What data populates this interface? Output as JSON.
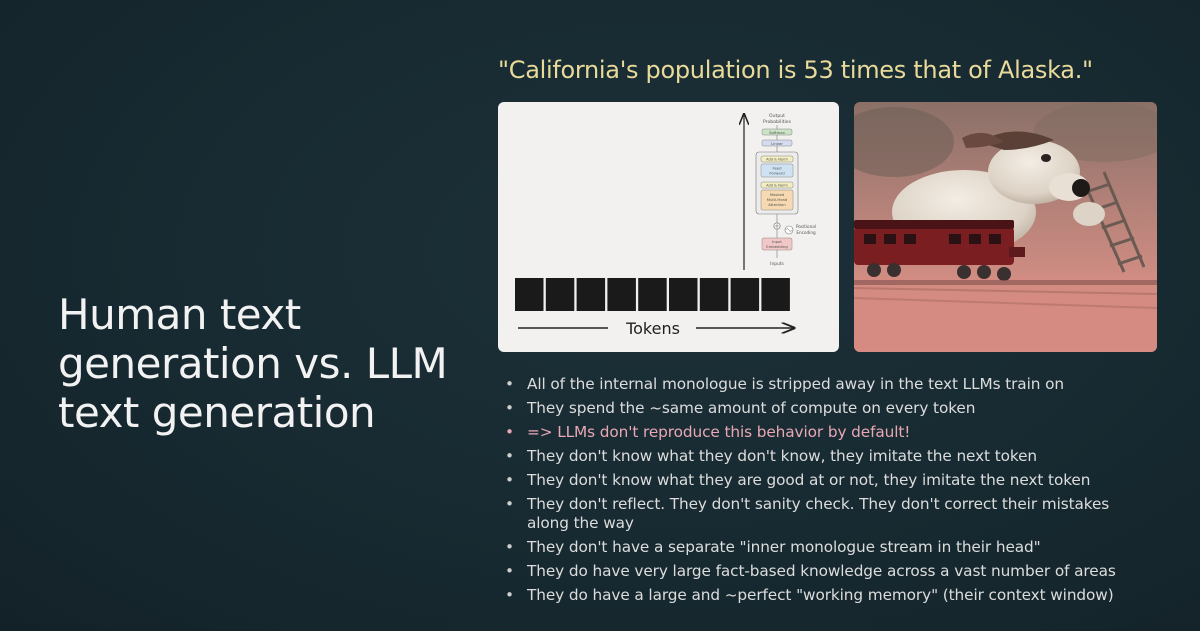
{
  "slide": {
    "title_lines": [
      "Human text",
      "generation vs. LLM",
      "text generation"
    ],
    "quote": "\"California's population is 53 times that of Alaska.\""
  },
  "diagram": {
    "tokens_label": "Tokens",
    "token_count": 9,
    "arch_labels": {
      "output": "Output",
      "probabilities": "Probabilities",
      "softmax": "Softmax",
      "linear": "Linear",
      "add_norm": "Add & Norm",
      "feed": "Feed",
      "forward": "Forward",
      "masked": "Masked",
      "multihead": "Multi-Head",
      "attention": "Attention",
      "positional": "Positional",
      "encoding": "Encoding",
      "input": "Input",
      "embedding": "Embedding",
      "inputs": "Inputs"
    }
  },
  "photo": {
    "subject": "clay dog on toy train"
  },
  "bullets": [
    {
      "text": "All of the internal monologue is stripped away in the text LLMs train on",
      "highlight": false
    },
    {
      "text": "They spend the ~same amount of compute on every token",
      "highlight": false
    },
    {
      "text": "=> LLMs don't reproduce this behavior by default!",
      "highlight": true
    },
    {
      "text": "They don't know what they don't know, they imitate the next token",
      "highlight": false
    },
    {
      "text": "They don't know what they are good at or not, they imitate the next token",
      "highlight": false
    },
    {
      "text": "They don't reflect. They don't sanity check. They don't correct their mistakes along the way",
      "highlight": false
    },
    {
      "text": "They don't have a separate \"inner monologue stream in their head\"",
      "highlight": false
    },
    {
      "text": "They do have very large fact-based knowledge across a vast number of areas",
      "highlight": false
    },
    {
      "text": "They do have a large and ~perfect \"working memory\" (their context window)",
      "highlight": false
    }
  ],
  "colors": {
    "background": "#172a31",
    "quote": "#e9da9a",
    "highlight": "#e8a7b4",
    "text": "#dcdcdc"
  }
}
